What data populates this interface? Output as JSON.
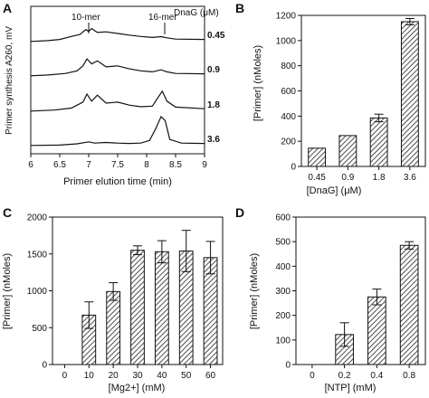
{
  "panels": {
    "a": {
      "letter": "A"
    },
    "b": {
      "letter": "B"
    },
    "c": {
      "letter": "C"
    },
    "d": {
      "letter": "D"
    }
  },
  "chart_data": [
    {
      "panel": "A",
      "type": "line",
      "xlabel": "Primer elution time (min)",
      "ylabel": "Primer synthesis A260, mV",
      "xlim": [
        6,
        9
      ],
      "x_ticks": [
        "6",
        "6.5",
        "7",
        "7.5",
        "8",
        "8.5",
        "9"
      ],
      "annotations": [
        "10-mer",
        "16-mer"
      ],
      "legend_title": "DnaG (μM)",
      "series": [
        {
          "name": "0.45",
          "points": [
            [
              6.0,
              0.1
            ],
            [
              6.3,
              0.14
            ],
            [
              6.5,
              0.2
            ],
            [
              6.7,
              0.35
            ],
            [
              6.85,
              0.45
            ],
            [
              6.95,
              0.7
            ],
            [
              7.0,
              0.6
            ],
            [
              7.05,
              0.75
            ],
            [
              7.15,
              0.55
            ],
            [
              7.3,
              0.58
            ],
            [
              7.5,
              0.5
            ],
            [
              7.7,
              0.42
            ],
            [
              7.9,
              0.35
            ],
            [
              8.1,
              0.3
            ],
            [
              8.25,
              0.34
            ],
            [
              8.35,
              0.28
            ],
            [
              8.5,
              0.22
            ],
            [
              9.0,
              0.2
            ]
          ]
        },
        {
          "name": "0.9",
          "points": [
            [
              6.0,
              0.1
            ],
            [
              6.3,
              0.14
            ],
            [
              6.6,
              0.22
            ],
            [
              6.8,
              0.35
            ],
            [
              6.9,
              0.6
            ],
            [
              6.97,
              0.95
            ],
            [
              7.05,
              0.7
            ],
            [
              7.15,
              0.85
            ],
            [
              7.3,
              0.55
            ],
            [
              7.5,
              0.6
            ],
            [
              7.7,
              0.45
            ],
            [
              7.9,
              0.35
            ],
            [
              8.1,
              0.3
            ],
            [
              8.25,
              0.4
            ],
            [
              8.35,
              0.3
            ],
            [
              8.5,
              0.22
            ],
            [
              9.0,
              0.2
            ]
          ]
        },
        {
          "name": "1.8",
          "points": [
            [
              6.0,
              0.1
            ],
            [
              6.4,
              0.15
            ],
            [
              6.7,
              0.25
            ],
            [
              6.9,
              0.55
            ],
            [
              6.97,
              0.95
            ],
            [
              7.05,
              0.6
            ],
            [
              7.15,
              0.9
            ],
            [
              7.3,
              0.5
            ],
            [
              7.5,
              0.55
            ],
            [
              7.7,
              0.4
            ],
            [
              7.9,
              0.32
            ],
            [
              8.1,
              0.35
            ],
            [
              8.2,
              0.8
            ],
            [
              8.27,
              1.1
            ],
            [
              8.35,
              0.6
            ],
            [
              8.5,
              0.3
            ],
            [
              9.0,
              0.22
            ]
          ]
        },
        {
          "name": "3.6",
          "points": [
            [
              6.0,
              0.1
            ],
            [
              6.5,
              0.12
            ],
            [
              6.8,
              0.18
            ],
            [
              7.0,
              0.28
            ],
            [
              7.1,
              0.22
            ],
            [
              7.3,
              0.25
            ],
            [
              7.5,
              0.22
            ],
            [
              7.7,
              0.2
            ],
            [
              7.9,
              0.22
            ],
            [
              8.05,
              0.35
            ],
            [
              8.15,
              0.9
            ],
            [
              8.25,
              1.55
            ],
            [
              8.32,
              1.35
            ],
            [
              8.4,
              0.4
            ],
            [
              8.6,
              0.22
            ],
            [
              9.0,
              0.2
            ]
          ]
        }
      ]
    },
    {
      "panel": "B",
      "type": "bar",
      "xlabel": "[DnaG] (μM)",
      "ylabel": "[Primer] (nMoles)",
      "categories": [
        "0.45",
        "0.9",
        "1.8",
        "3.6"
      ],
      "values": [
        145,
        245,
        385,
        1150
      ],
      "errors": [
        0,
        0,
        30,
        25
      ],
      "ylim": [
        0,
        1200
      ],
      "y_ticks": [
        "0",
        "200",
        "400",
        "600",
        "800",
        "1000",
        "1200"
      ]
    },
    {
      "panel": "C",
      "type": "bar",
      "xlabel": "[Mg2+] (mM)",
      "ylabel": "[Primer] (nMoles)",
      "categories": [
        "0",
        "10",
        "20",
        "30",
        "40",
        "50",
        "60"
      ],
      "values": [
        0,
        670,
        990,
        1550,
        1530,
        1540,
        1450
      ],
      "errors": [
        0,
        180,
        120,
        60,
        150,
        280,
        220
      ],
      "ylim": [
        0,
        2000
      ],
      "y_ticks": [
        "0",
        "500",
        "1000",
        "1500",
        "2000"
      ]
    },
    {
      "panel": "D",
      "type": "bar",
      "xlabel": "[NTP] (mM)",
      "ylabel": "[Primer] (nMoles)",
      "categories": [
        "0",
        "0.2",
        "0.4",
        "0.8"
      ],
      "values": [
        0,
        122,
        275,
        485
      ],
      "errors": [
        0,
        48,
        32,
        15
      ],
      "ylim": [
        0,
        600
      ],
      "y_ticks": [
        "0",
        "100",
        "200",
        "300",
        "400",
        "500",
        "600"
      ]
    }
  ]
}
